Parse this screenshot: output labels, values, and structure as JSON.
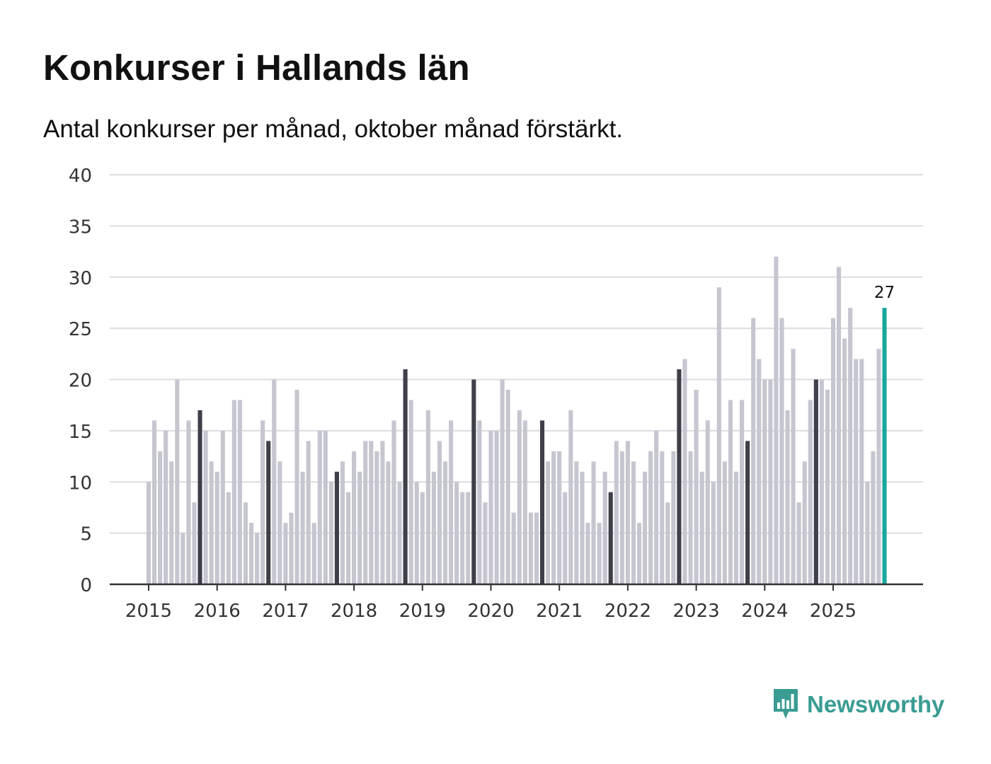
{
  "header": {
    "title": "Konkurser i Hallands län",
    "subtitle": "Antal konkurser per månad, oktober månad förstärkt."
  },
  "brand": {
    "name": "Newsworthy",
    "logo_icon": "chart-speech-bubble-icon",
    "color": "#3a9c93"
  },
  "colors": {
    "bar": "#c6c6d0",
    "highlight": "#3f3f49",
    "current": "#17a89c",
    "grid": "#dcdce2",
    "axis": "#333333"
  },
  "chart_data": {
    "type": "bar",
    "title": "Konkurser i Hallands län",
    "subtitle": "Antal konkurser per månad, oktober månad förstärkt.",
    "xlabel": "",
    "ylabel": "",
    "ylim": [
      0,
      40
    ],
    "yticks": [
      0,
      5,
      10,
      15,
      20,
      25,
      30,
      35,
      40
    ],
    "grid": true,
    "start": "2015-01",
    "xtick_labels": [
      "2015",
      "2016",
      "2017",
      "2018",
      "2019",
      "2020",
      "2021",
      "2022",
      "2023",
      "2024",
      "2025"
    ],
    "highlight_month": "oktober",
    "values": [
      10,
      16,
      13,
      15,
      12,
      20,
      5,
      16,
      8,
      17,
      15,
      12,
      11,
      15,
      9,
      18,
      18,
      8,
      6,
      5,
      16,
      14,
      20,
      12,
      6,
      7,
      19,
      11,
      14,
      6,
      15,
      15,
      10,
      11,
      12,
      9,
      13,
      11,
      14,
      14,
      13,
      14,
      12,
      16,
      10,
      21,
      18,
      10,
      9,
      17,
      11,
      14,
      12,
      16,
      10,
      9,
      9,
      20,
      16,
      8,
      15,
      15,
      20,
      19,
      7,
      17,
      16,
      7,
      7,
      16,
      12,
      13,
      13,
      9,
      17,
      12,
      11,
      6,
      12,
      6,
      11,
      9,
      14,
      13,
      14,
      12,
      6,
      11,
      13,
      15,
      13,
      8,
      13,
      21,
      22,
      13,
      19,
      11,
      16,
      10,
      29,
      12,
      18,
      11,
      18,
      14,
      26,
      22,
      20,
      20,
      32,
      26,
      17,
      23,
      8,
      12,
      18,
      20,
      20,
      19,
      26,
      31,
      24,
      27,
      22,
      22,
      10,
      13,
      23,
      27
    ],
    "last_label": "27"
  }
}
